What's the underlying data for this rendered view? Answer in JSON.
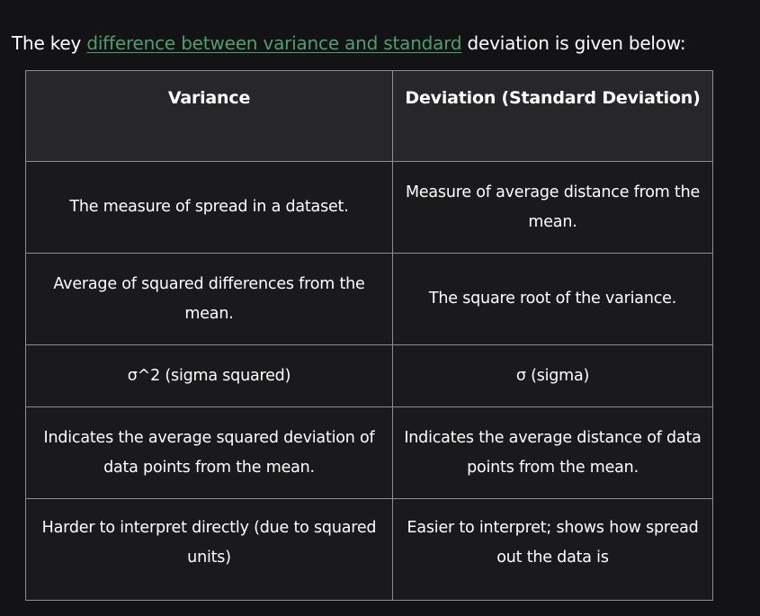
{
  "intro": {
    "before": "The key ",
    "link": "difference between variance and standard",
    "after": " deviation is given below:"
  },
  "table": {
    "headers": [
      "Variance",
      "Deviation (Standard Deviation)"
    ],
    "rows": [
      [
        "The measure of spread in a dataset.",
        "Measure of average distance from the mean."
      ],
      [
        "Average of squared differences from the mean.",
        "The square root of the variance."
      ],
      [
        "σ^2 (sigma squared)",
        "σ (sigma)"
      ],
      [
        "Indicates the average squared deviation of data points from the mean.",
        "Indicates the average distance of data points from the mean."
      ],
      [
        "Harder to interpret directly (due to squared units)",
        "Easier to interpret; shows how spread out the data is"
      ]
    ]
  },
  "colors": {
    "background": "#131315",
    "header_bg": "#27272a",
    "cell_bg": "#1a1a1c",
    "link": "#4e9e6f",
    "border": "#8e8e90"
  }
}
